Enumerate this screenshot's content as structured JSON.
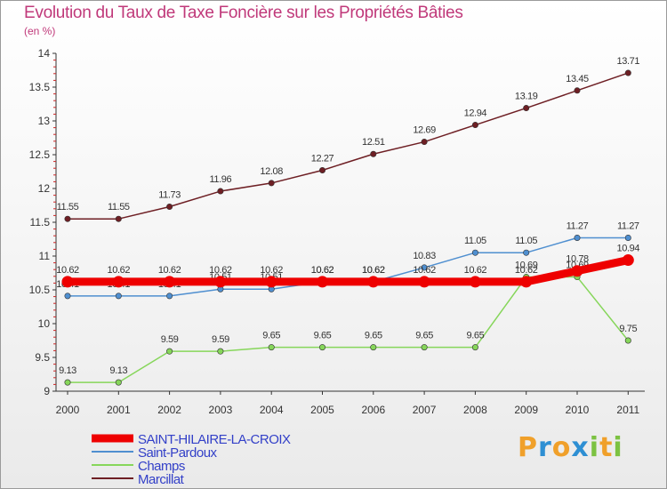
{
  "chart_data": {
    "type": "line",
    "title": "Evolution du Taux de Taxe Foncière sur les Propriétés Bâties",
    "subtitle": "(en %)",
    "x": [
      "2000",
      "2001",
      "2002",
      "2003",
      "2004",
      "2005",
      "2006",
      "2007",
      "2008",
      "2009",
      "2010",
      "2011"
    ],
    "ylim": [
      9,
      14
    ],
    "yticks": [
      "9",
      "9.5",
      "10",
      "10.5",
      "11",
      "11.5",
      "12",
      "12.5",
      "13",
      "13.5",
      "14"
    ],
    "series": [
      {
        "name": "Marcillat",
        "color": "#6e1f24",
        "values": [
          11.55,
          11.55,
          11.73,
          11.96,
          12.08,
          12.27,
          12.51,
          12.69,
          12.94,
          13.19,
          13.45,
          13.71
        ],
        "labels": [
          "11.55",
          "11.55",
          "11.73",
          "11.96",
          "12.08",
          "12.27",
          "12.51",
          "12.69",
          "12.94",
          "13.19",
          "13.45",
          "13.71"
        ]
      },
      {
        "name": "Saint-Pardoux",
        "color": "#4f8fd0",
        "values": [
          10.41,
          10.41,
          10.41,
          10.51,
          10.51,
          10.62,
          10.62,
          10.83,
          11.05,
          11.05,
          11.27,
          11.27
        ],
        "labels": [
          "10.41",
          "10.41",
          "10.41",
          "10.51",
          "10.51",
          "10.62",
          "10.62",
          "10.83",
          "11.05",
          "11.05",
          "11.27",
          "11.27"
        ]
      },
      {
        "name": "Champs",
        "color": "#86d65a",
        "values": [
          9.13,
          9.13,
          9.59,
          9.59,
          9.65,
          9.65,
          9.65,
          9.65,
          9.65,
          10.69,
          10.69,
          9.75
        ],
        "labels": [
          "9.13",
          "9.13",
          "9.59",
          "9.59",
          "9.65",
          "9.65",
          "9.65",
          "9.65",
          "9.65",
          "10.69",
          "10.69",
          "9.75"
        ]
      },
      {
        "name": "SAINT-HILAIRE-LA-CROIX",
        "color": "#ee0000",
        "values": [
          10.62,
          10.62,
          10.62,
          10.62,
          10.62,
          10.62,
          10.62,
          10.62,
          10.62,
          10.62,
          10.78,
          10.94
        ],
        "labels": [
          "10.62",
          "10.62",
          "10.62",
          "10.62",
          "10.62",
          "10.62",
          "10.62",
          "10.62",
          "10.62",
          "10.62",
          "10.78",
          "10.94"
        ]
      }
    ],
    "legend": [
      "SAINT-HILAIRE-LA-CROIX",
      "Saint-Pardoux",
      "Champs",
      "Marcillat"
    ],
    "legend_position": "bottom-left"
  },
  "logo": {
    "text": "Proxiti",
    "letters": [
      "P",
      "r",
      "o",
      "x",
      "i",
      "t",
      "i"
    ],
    "colors": [
      "#f0a02a",
      "#2e8fd3",
      "#f0a02a",
      "#2e8fd3",
      "#7cc242",
      "#f0a02a",
      "#7cc242"
    ]
  }
}
